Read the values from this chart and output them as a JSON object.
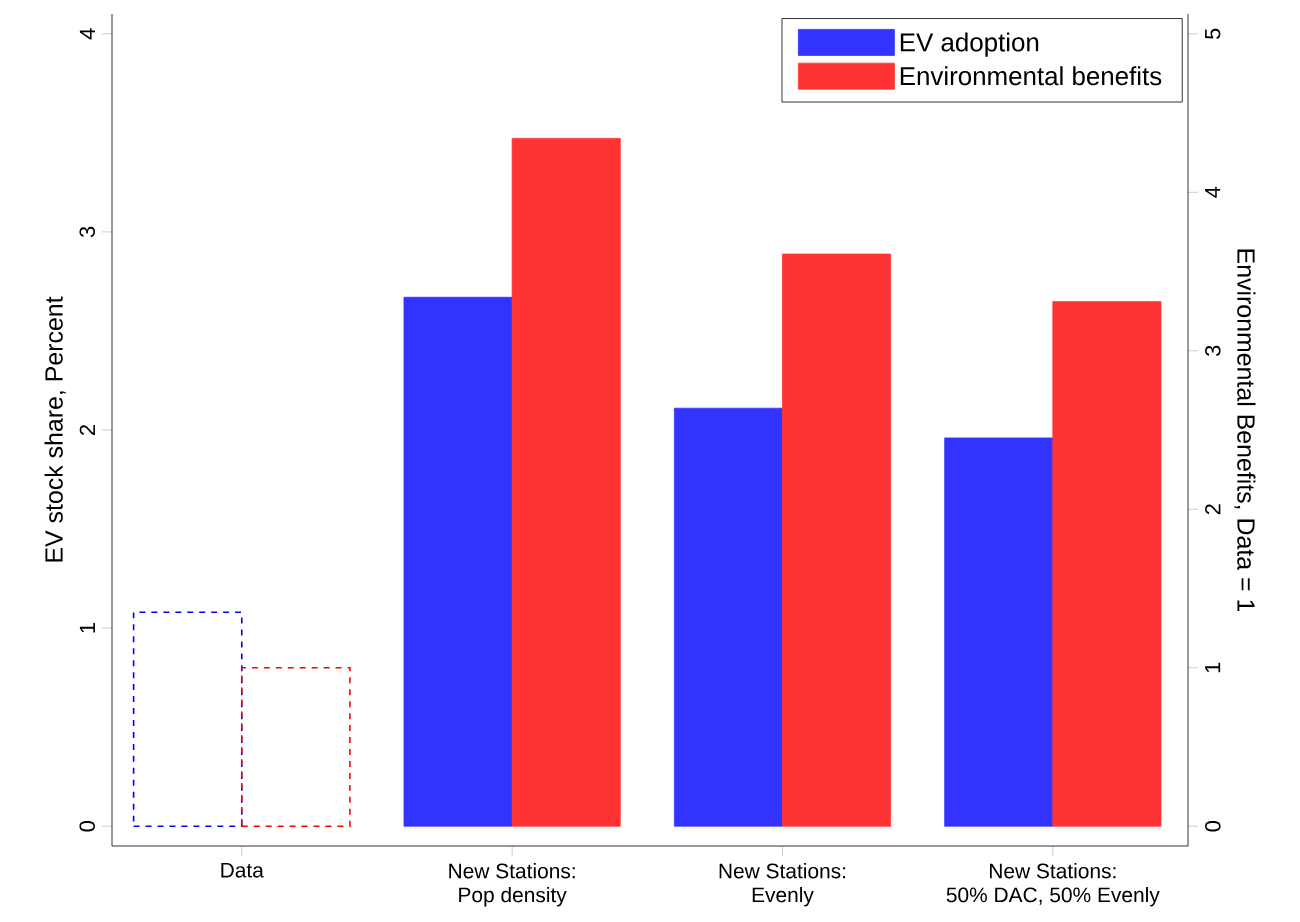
{
  "chart_data": {
    "type": "bar",
    "categories": [
      "Data",
      "New Stations:\nPop density",
      "New Stations:\nEvenly",
      "New Stations:\n50% DAC, 50% Evenly"
    ],
    "ylabel": "EV stock share, Percent",
    "y2label": "Environmental Benefits, Data = 1",
    "ylim": [
      -0.1,
      4.1
    ],
    "yticks": [
      0,
      1,
      2,
      3,
      4
    ],
    "y2lim": [
      -0.125,
      5.125
    ],
    "y2ticks": [
      0,
      1,
      2,
      3,
      4,
      5
    ],
    "legend": "top right",
    "series": [
      {
        "color": "#0000ff",
        "line_style": "dashed",
        "values": [
          1.08,
          null,
          null,
          null
        ]
      },
      {
        "color": "#ff0000",
        "line_style": "dashed",
        "axis": "y2",
        "values": [
          1.0,
          null,
          null,
          null
        ]
      },
      {
        "name": "EV adoption",
        "color": "#3333ff",
        "values": [
          null,
          2.67,
          2.11,
          1.96
        ]
      },
      {
        "name": "Environmental benefits",
        "color": "#ff3333",
        "axis": "y2",
        "values": [
          null,
          4.34,
          3.61,
          3.31
        ]
      }
    ]
  }
}
